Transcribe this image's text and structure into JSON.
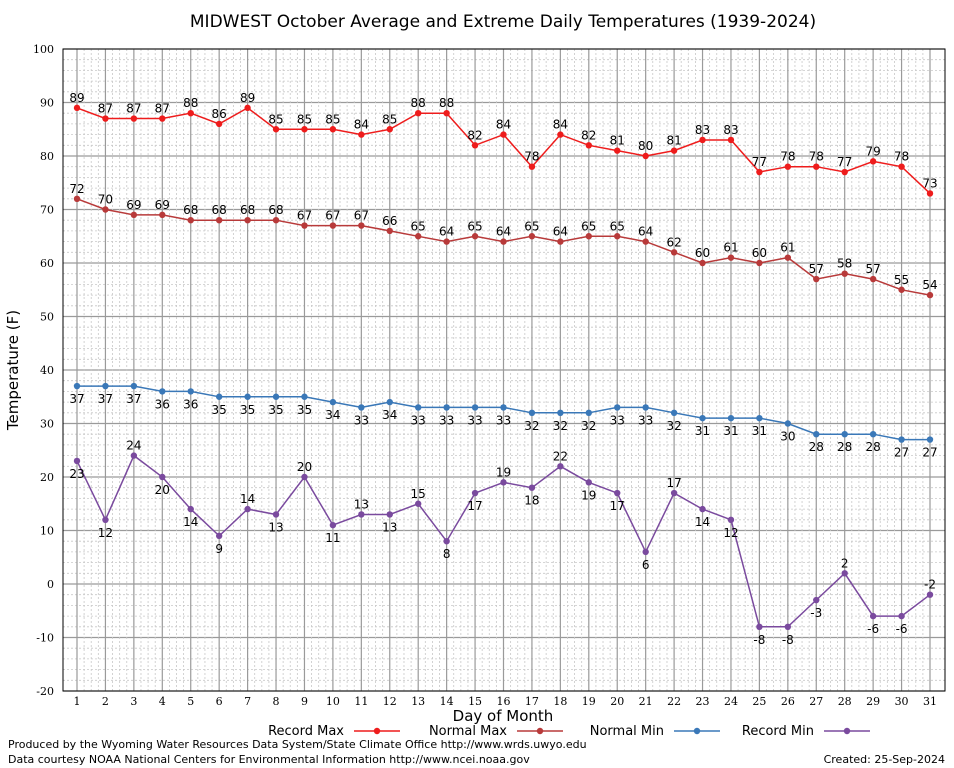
{
  "chart_data": {
    "type": "line",
    "title": "MIDWEST October Average and Extreme Daily Temperatures (1939-2024)",
    "xlabel": "Day of Month",
    "ylabel": "Temperature (F)",
    "xlim": [
      1,
      31
    ],
    "ylim": [
      -20,
      100
    ],
    "yticks": [
      -20,
      -10,
      0,
      10,
      20,
      30,
      40,
      50,
      60,
      70,
      80,
      90,
      100
    ],
    "x": [
      1,
      2,
      3,
      4,
      5,
      6,
      7,
      8,
      9,
      10,
      11,
      12,
      13,
      14,
      15,
      16,
      17,
      18,
      19,
      20,
      21,
      22,
      23,
      24,
      25,
      26,
      27,
      28,
      29,
      30,
      31
    ],
    "grid": true,
    "legend_position": "bottom",
    "series": [
      {
        "name": "Record Max",
        "color": "#ee1c1c",
        "values": [
          89,
          87,
          87,
          87,
          88,
          86,
          89,
          85,
          85,
          85,
          84,
          85,
          88,
          88,
          82,
          84,
          78,
          84,
          82,
          81,
          80,
          81,
          83,
          83,
          77,
          78,
          78,
          77,
          79,
          78,
          73
        ]
      },
      {
        "name": "Normal Max",
        "color": "#b83a3a",
        "values": [
          72,
          70,
          69,
          69,
          68,
          68,
          68,
          68,
          67,
          67,
          67,
          66,
          65,
          64,
          65,
          64,
          65,
          64,
          65,
          65,
          64,
          62,
          60,
          61,
          60,
          61,
          57,
          58,
          57,
          55,
          54
        ]
      },
      {
        "name": "Normal Min",
        "color": "#3a78b8",
        "values": [
          37,
          37,
          37,
          36,
          36,
          35,
          35,
          35,
          35,
          34,
          33,
          34,
          33,
          33,
          33,
          33,
          32,
          32,
          32,
          33,
          33,
          32,
          31,
          31,
          31,
          30,
          28,
          28,
          28,
          27,
          27
        ]
      },
      {
        "name": "Record Min",
        "color": "#7a4a9e",
        "values": [
          23,
          12,
          24,
          20,
          14,
          9,
          14,
          13,
          20,
          11,
          13,
          13,
          15,
          8,
          17,
          19,
          18,
          22,
          19,
          17,
          6,
          17,
          14,
          12,
          -8,
          -8,
          -3,
          2,
          -6,
          -6,
          -2
        ]
      }
    ]
  },
  "footer": {
    "line1": "Produced by the Wyoming Water Resources Data System/State Climate Office http://www.wrds.uwyo.edu",
    "line2": "Data courtesy NOAA National Centers for Environmental Information http://www.ncei.noaa.gov",
    "created": "Created:  25-Sep-2024"
  }
}
